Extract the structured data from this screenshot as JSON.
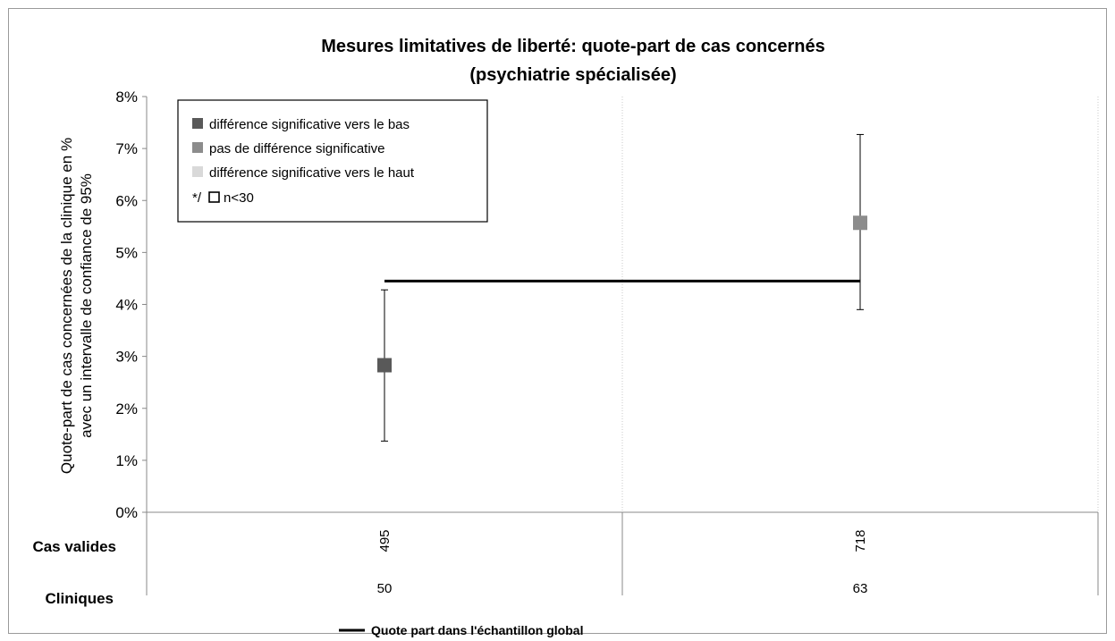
{
  "chart_data": {
    "type": "scatter",
    "title": [
      "Mesures limitatives de liberté: quote-part de cas concernés",
      "(psychiatrie spécialisée)"
    ],
    "ylabel": [
      "Quote-part de cas concernées de la clinique en %",
      "avec un intervalle de confiance de 95%"
    ],
    "ylim": [
      0,
      8
    ],
    "yticks": [
      "0%",
      "1%",
      "2%",
      "3%",
      "4%",
      "5%",
      "6%",
      "7%",
      "8%"
    ],
    "grid": "vertical-dotted",
    "points": [
      {
        "cas_valides": "495",
        "cliniques": "50",
        "value": 2.83,
        "ci_low": 1.37,
        "ci_high": 4.28,
        "category": "diff_down"
      },
      {
        "cas_valides": "718",
        "cliniques": "63",
        "value": 5.57,
        "ci_low": 3.9,
        "ci_high": 7.27,
        "category": "no_diff"
      }
    ],
    "global_rate": 4.45,
    "row_labels": {
      "cas_valides": "Cas valides",
      "cliniques": "Cliniques"
    },
    "legend": {
      "placement": "top-left",
      "items": [
        {
          "key": "diff_down",
          "label": "différence significative vers le bas",
          "color": "#595959"
        },
        {
          "key": "no_diff",
          "label": "pas de différence significative",
          "color": "#8c8c8c"
        },
        {
          "key": "diff_up",
          "label": "différence significative vers le haut",
          "color": "#d9d9d9"
        }
      ],
      "small_n_prefix": "*/",
      "small_n_label": "n<30"
    },
    "bottom_legend": {
      "label": "Quote part dans l'échantillon global",
      "color": "#000000"
    }
  }
}
